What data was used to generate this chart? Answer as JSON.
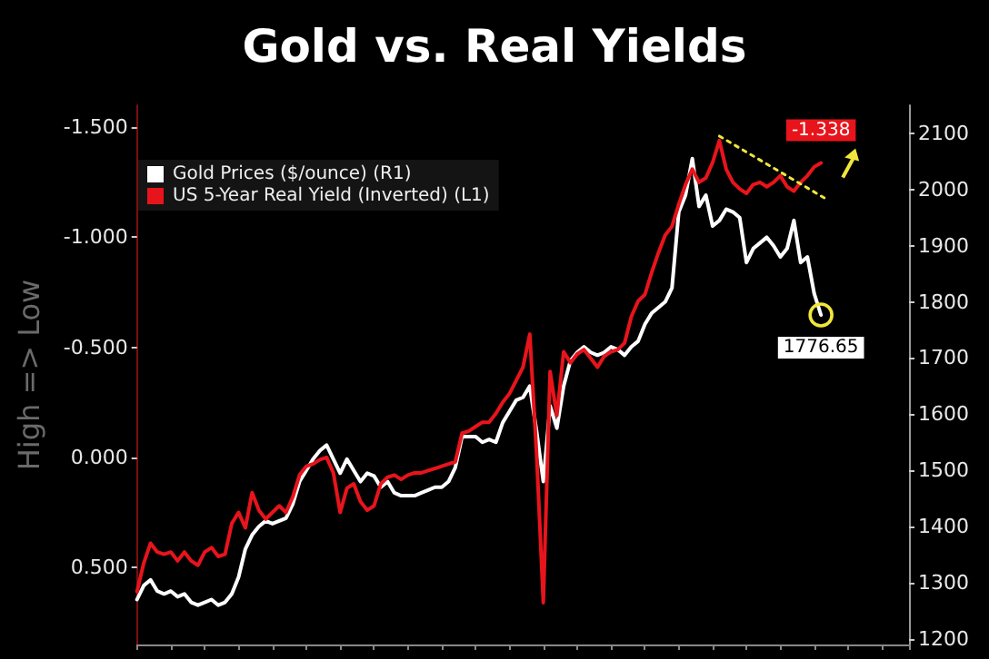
{
  "chart_data": {
    "type": "line",
    "title": "Gold vs. Real Yields",
    "ylabel": "High => Low",
    "legend": "top left",
    "marker": "none",
    "categories": [
      null,
      null,
      null,
      null,
      null,
      null,
      null,
      null,
      null,
      null,
      null,
      null,
      null,
      null,
      null,
      null,
      null,
      null,
      null,
      null,
      null,
      null,
      null,
      null,
      null,
      null,
      null,
      null,
      null,
      null,
      null,
      null,
      null,
      null,
      null,
      null,
      null,
      null,
      null,
      null,
      null,
      null,
      null,
      null,
      null,
      null,
      null,
      null,
      null,
      null,
      null,
      null,
      null,
      null,
      null,
      null,
      null,
      null,
      null,
      null,
      null,
      null,
      null,
      null,
      null,
      null,
      null,
      null,
      null,
      null,
      null,
      null,
      null,
      null,
      null,
      null,
      null,
      null,
      null,
      null,
      null,
      null,
      null,
      null,
      null,
      null,
      null,
      null,
      null,
      null,
      null,
      null,
      null,
      null,
      null,
      null,
      null,
      null,
      null,
      null,
      null,
      null,
      null,
      null,
      null,
      null,
      null,
      null,
      null,
      null,
      null,
      null,
      null,
      null,
      null
    ],
    "ylim": [
      0.85,
      -1.6
    ],
    "yticks": [
      {
        "value": 0.5,
        "label": "0.500"
      },
      {
        "value": 0,
        "label": "0.000"
      },
      {
        "value": -0.5,
        "label": "-0.500"
      },
      {
        "value": -1,
        "label": "-1.000"
      },
      {
        "value": -1.5,
        "label": "-1.500"
      }
    ],
    "y2lim": [
      1190,
      2150
    ],
    "y2ticks": [
      1200,
      1300,
      1400,
      1500,
      1600,
      1700,
      1800,
      1900,
      2000,
      2100
    ],
    "series": [
      {
        "name": "Gold Prices ($/ounce) (R1)",
        "color": "#ffffff",
        "axis": "y2",
        "values": [
          1270,
          1295,
          1305,
          1285,
          1280,
          1285,
          1275,
          1280,
          1265,
          1260,
          1265,
          1270,
          1260,
          1265,
          1280,
          1310,
          1360,
          1385,
          1400,
          1410,
          1405,
          1410,
          1415,
          1440,
          1480,
          1500,
          1520,
          1535,
          1545,
          1520,
          1495,
          1520,
          1500,
          1480,
          1495,
          1490,
          1470,
          1480,
          1460,
          1455,
          1455,
          1455,
          1460,
          1465,
          1470,
          1470,
          1480,
          1505,
          1560,
          1560,
          1560,
          1550,
          1555,
          1550,
          1585,
          1605,
          1625,
          1630,
          1650,
          1570,
          1480,
          1615,
          1575,
          1650,
          1695,
          1710,
          1720,
          1710,
          1705,
          1710,
          1720,
          1715,
          1705,
          1720,
          1730,
          1760,
          1780,
          1790,
          1800,
          1825,
          1960,
          1990,
          2055,
          1970,
          1990,
          1935,
          1945,
          1965,
          1960,
          1950,
          1870,
          1895,
          1905,
          1915,
          1900,
          1880,
          1895,
          1945,
          1870,
          1880,
          1815,
          1776.65,
          null,
          null,
          null,
          null,
          null,
          null,
          null,
          null,
          null,
          null,
          null,
          null,
          null
        ],
        "value_labels": [
          null,
          null,
          null,
          null,
          null,
          null,
          null,
          null,
          null,
          null,
          null,
          null,
          null,
          null,
          null,
          null,
          null,
          null,
          null,
          null,
          null,
          null,
          null,
          null,
          null,
          null,
          null,
          null,
          null,
          null,
          null,
          null,
          null,
          null,
          null,
          null,
          null,
          null,
          null,
          null,
          null,
          null,
          null,
          null,
          null,
          null,
          null,
          null,
          null,
          null,
          null,
          null,
          null,
          null,
          null,
          null,
          null,
          null,
          null,
          null,
          null,
          null,
          null,
          null,
          null,
          null,
          null,
          null,
          null,
          null,
          null,
          null,
          null,
          null,
          null,
          null,
          null,
          null,
          null,
          null,
          null,
          null,
          null,
          null,
          null,
          null,
          null,
          null,
          null,
          null,
          null,
          null,
          null,
          null,
          null,
          null,
          null,
          null,
          null,
          null,
          null,
          "1776.65",
          null,
          null,
          null,
          null,
          null,
          null,
          null,
          null,
          null,
          null,
          null,
          null,
          null
        ]
      },
      {
        "name": "US 5-Year Real Yield (Inverted) (L1)",
        "color": "#e8141c",
        "axis": "y",
        "values": [
          0.61,
          0.48,
          0.39,
          0.43,
          0.44,
          0.43,
          0.47,
          0.43,
          0.47,
          0.49,
          0.43,
          0.41,
          0.45,
          0.44,
          0.3,
          0.25,
          0.32,
          0.16,
          0.24,
          0.28,
          0.25,
          0.22,
          0.25,
          0.18,
          0.08,
          0.04,
          0.03,
          0.01,
          0.0,
          0.07,
          0.25,
          0.14,
          0.12,
          0.2,
          0.24,
          0.22,
          0.12,
          0.09,
          0.08,
          0.1,
          0.08,
          0.07,
          0.07,
          0.06,
          0.05,
          0.04,
          0.03,
          0.02,
          -0.11,
          -0.12,
          -0.14,
          -0.16,
          -0.16,
          -0.2,
          -0.25,
          -0.29,
          -0.35,
          -0.41,
          -0.56,
          -0.02,
          0.66,
          -0.39,
          -0.19,
          -0.48,
          -0.43,
          -0.47,
          -0.49,
          -0.45,
          -0.41,
          -0.46,
          -0.48,
          -0.49,
          -0.52,
          -0.64,
          -0.71,
          -0.74,
          -0.84,
          -0.93,
          -1.01,
          -1.05,
          -1.15,
          -1.24,
          -1.31,
          -1.25,
          -1.27,
          -1.34,
          -1.44,
          -1.31,
          -1.25,
          -1.22,
          -1.2,
          -1.24,
          -1.25,
          -1.23,
          -1.25,
          -1.28,
          -1.23,
          -1.21,
          -1.25,
          -1.28,
          -1.32,
          -1.338,
          null,
          null,
          null,
          null,
          null,
          null,
          null,
          null,
          null,
          null,
          null,
          null,
          null
        ],
        "value_labels": [
          null,
          null,
          null,
          null,
          null,
          null,
          null,
          null,
          null,
          null,
          null,
          null,
          null,
          null,
          null,
          null,
          null,
          null,
          null,
          null,
          null,
          null,
          null,
          null,
          null,
          null,
          null,
          null,
          null,
          null,
          null,
          null,
          null,
          null,
          null,
          null,
          null,
          null,
          null,
          null,
          null,
          null,
          null,
          null,
          null,
          null,
          null,
          null,
          null,
          null,
          null,
          null,
          null,
          null,
          null,
          null,
          null,
          null,
          null,
          null,
          null,
          null,
          null,
          null,
          null,
          null,
          null,
          null,
          null,
          null,
          null,
          null,
          null,
          null,
          null,
          null,
          null,
          null,
          null,
          null,
          null,
          null,
          null,
          null,
          null,
          null,
          null,
          null,
          null,
          null,
          null,
          null,
          null,
          null,
          null,
          null,
          null,
          null,
          null,
          null,
          null,
          "-1.338",
          null,
          null,
          null,
          null,
          null,
          null,
          null,
          null,
          null,
          null,
          null,
          null,
          null
        ]
      },
      {
        "type": "line",
        "color": "#f0e63c",
        "axis": "y",
        "line_style": "dotted",
        "values": [
          null,
          null,
          null,
          null,
          null,
          null,
          null,
          null,
          null,
          null,
          null,
          null,
          null,
          null,
          null,
          null,
          null,
          null,
          null,
          null,
          null,
          null,
          null,
          null,
          null,
          null,
          null,
          null,
          null,
          null,
          null,
          null,
          null,
          null,
          null,
          null,
          null,
          null,
          null,
          null,
          null,
          null,
          null,
          null,
          null,
          null,
          null,
          null,
          null,
          null,
          null,
          null,
          null,
          null,
          null,
          null,
          null,
          null,
          null,
          null,
          null,
          null,
          null,
          null,
          null,
          null,
          null,
          null,
          null,
          null,
          null,
          null,
          null,
          null,
          null,
          null,
          null,
          null,
          null,
          null,
          null,
          null,
          null,
          null,
          null,
          null,
          -1.46,
          null,
          null,
          null,
          null,
          null,
          null,
          null,
          null,
          null,
          null,
          null,
          null,
          null,
          null,
          null,
          -1.17,
          null,
          null,
          null,
          null,
          null,
          null,
          null,
          null,
          null,
          null,
          null,
          null
        ]
      }
    ]
  }
}
